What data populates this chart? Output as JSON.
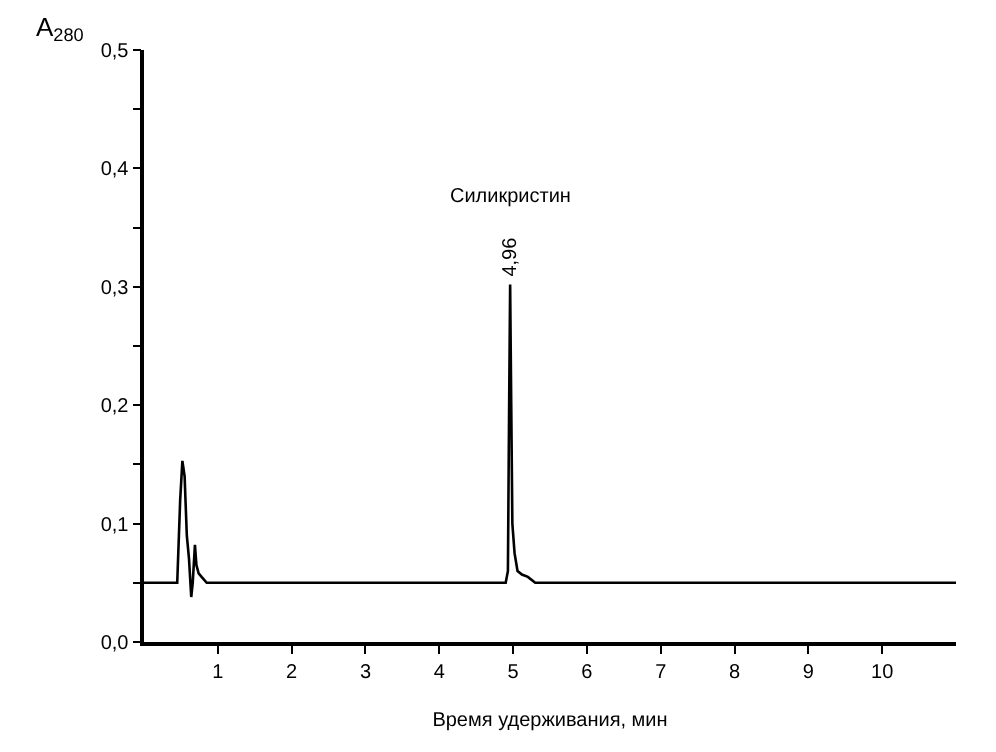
{
  "chart_data": {
    "type": "line",
    "xlabel": "Время удерживания, мин",
    "ylabel": "A$_{280}$",
    "x": [
      0,
      0.45,
      0.49,
      0.52,
      0.55,
      0.58,
      0.61,
      0.64,
      0.66,
      0.69,
      0.71,
      0.74,
      0.78,
      0.85,
      1.0,
      2.0,
      3.0,
      4.0,
      4.9,
      4.93,
      4.945,
      4.96,
      4.975,
      4.99,
      5.02,
      5.06,
      5.12,
      5.2,
      5.3,
      6,
      8,
      10,
      11
    ],
    "series": [
      {
        "color": "#000000",
        "values": [
          0.05,
          0.05,
          0.12,
          0.153,
          0.14,
          0.09,
          0.07,
          0.038,
          0.05,
          0.082,
          0.065,
          0.058,
          0.055,
          0.05,
          0.05,
          0.05,
          0.05,
          0.05,
          0.05,
          0.06,
          0.19,
          0.302,
          0.2,
          0.1,
          0.075,
          0.06,
          0.057,
          0.055,
          0.05,
          0.05,
          0.05,
          0.05,
          0.05
        ]
      }
    ],
    "xlim": [
      0,
      11
    ],
    "ylim": [
      0,
      0.5
    ],
    "xticks": [
      1,
      2,
      3,
      4,
      5,
      6,
      7,
      8,
      9,
      10
    ],
    "yticks": [
      {
        "value": 0,
        "label": "0,0"
      },
      {
        "value": 0.05,
        "label": null
      },
      {
        "value": 0.1,
        "label": "0,1"
      },
      {
        "value": 0.15,
        "label": null
      },
      {
        "value": 0.2,
        "label": "0,2"
      },
      {
        "value": 0.25,
        "label": null
      },
      {
        "value": 0.3,
        "label": "0,3"
      },
      {
        "value": 0.35,
        "label": null
      },
      {
        "value": 0.4,
        "label": "0,4"
      },
      {
        "value": 0.45,
        "label": null
      },
      {
        "value": 0.5,
        "label": "0,5"
      }
    ],
    "annotations": [
      {
        "text": "4,96",
        "x": 4.96,
        "y": 0.302
      },
      "Силикристин"
    ],
    "legend": false,
    "marker": "none",
    "line_style": "solid"
  }
}
